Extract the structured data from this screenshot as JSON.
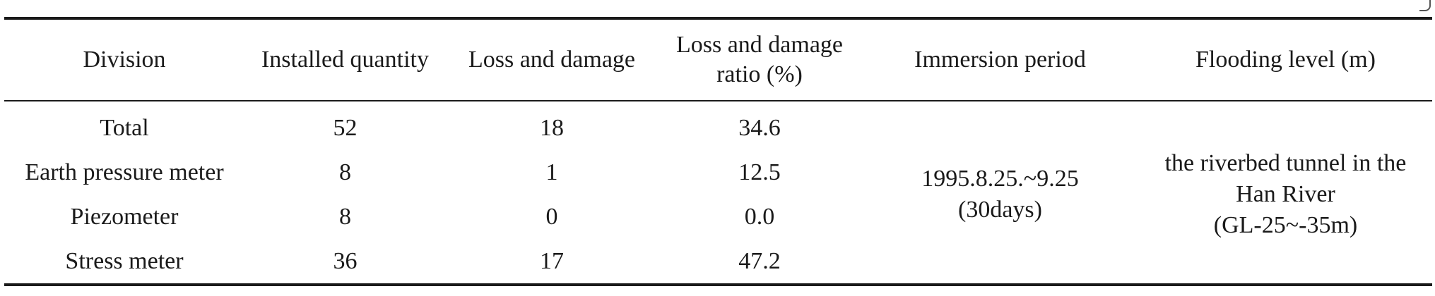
{
  "table": {
    "headers": [
      {
        "lines": [
          "Division"
        ]
      },
      {
        "lines": [
          "Installed quantity"
        ]
      },
      {
        "lines": [
          "Loss and damage"
        ]
      },
      {
        "lines": [
          "Loss and damage",
          "ratio (%)"
        ]
      },
      {
        "lines": [
          "Immersion period"
        ]
      },
      {
        "lines": [
          "Flooding level (m)"
        ]
      }
    ],
    "rows": [
      {
        "division": "Total",
        "installed": "52",
        "loss": "18",
        "ratio": "34.6"
      },
      {
        "division": "Earth pressure meter",
        "installed": "8",
        "loss": "1",
        "ratio": "12.5"
      },
      {
        "division": "Piezometer",
        "installed": "8",
        "loss": "0",
        "ratio": "0.0"
      },
      {
        "division": "Stress meter",
        "installed": "36",
        "loss": "17",
        "ratio": "47.2"
      }
    ],
    "immersion_period": {
      "lines": [
        "1995.8.25.~9.25",
        "(30days)"
      ]
    },
    "flooding_level": {
      "lines": [
        "the riverbed tunnel in the",
        "Han River",
        "(GL-25~-35m)"
      ]
    }
  }
}
